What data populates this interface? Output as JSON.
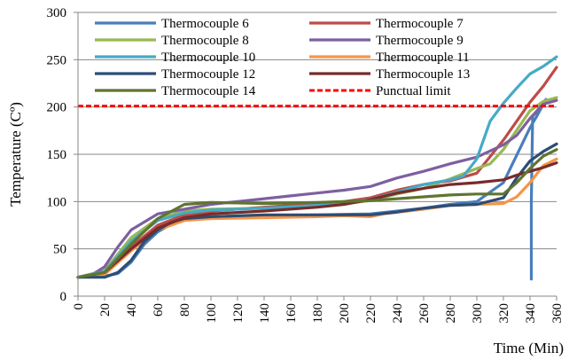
{
  "chart_data": {
    "type": "line",
    "xlabel": "Time (Min)",
    "ylabel": "Temperature (Cº)",
    "xlim": [
      0,
      360
    ],
    "ylim": [
      0,
      300
    ],
    "xticks": [
      0,
      20,
      40,
      60,
      80,
      100,
      120,
      140,
      160,
      180,
      200,
      220,
      240,
      260,
      280,
      300,
      320,
      340,
      360
    ],
    "yticks": [
      0,
      50,
      100,
      150,
      200,
      250,
      300
    ],
    "grid": "horizontal",
    "legend_placement": "top, inside plot, two columns",
    "series": [
      {
        "name": "Thermocouple 6",
        "color": "#4a7ebb",
        "points": [
          [
            0,
            20
          ],
          [
            20,
            21
          ],
          [
            30,
            24
          ],
          [
            40,
            36
          ],
          [
            50,
            55
          ],
          [
            60,
            68
          ],
          [
            70,
            76
          ],
          [
            80,
            81
          ],
          [
            100,
            83
          ],
          [
            140,
            85
          ],
          [
            180,
            86
          ],
          [
            220,
            87
          ],
          [
            260,
            93
          ],
          [
            280,
            97
          ],
          [
            300,
            100
          ],
          [
            320,
            120
          ],
          [
            340,
            178
          ],
          [
            345,
            190
          ],
          [
            352,
            208
          ],
          [
            342,
            190
          ],
          [
            341,
            100
          ],
          [
            341,
            18
          ]
        ]
      },
      {
        "name": "Thermocouple 7",
        "color": "#be4b48",
        "points": [
          [
            0,
            20
          ],
          [
            20,
            25
          ],
          [
            40,
            52
          ],
          [
            60,
            75
          ],
          [
            80,
            86
          ],
          [
            100,
            90
          ],
          [
            140,
            94
          ],
          [
            180,
            98
          ],
          [
            200,
            100
          ],
          [
            220,
            104
          ],
          [
            240,
            112
          ],
          [
            260,
            118
          ],
          [
            280,
            122
          ],
          [
            300,
            130
          ],
          [
            320,
            165
          ],
          [
            330,
            185
          ],
          [
            340,
            205
          ],
          [
            350,
            222
          ],
          [
            360,
            242
          ]
        ]
      },
      {
        "name": "Thermocouple 8",
        "color": "#98b954",
        "points": [
          [
            0,
            20
          ],
          [
            20,
            27
          ],
          [
            40,
            62
          ],
          [
            60,
            82
          ],
          [
            80,
            90
          ],
          [
            100,
            92
          ],
          [
            140,
            93
          ],
          [
            180,
            95
          ],
          [
            220,
            101
          ],
          [
            240,
            108
          ],
          [
            260,
            114
          ],
          [
            280,
            124
          ],
          [
            300,
            135
          ],
          [
            310,
            140
          ],
          [
            320,
            155
          ],
          [
            340,
            196
          ],
          [
            350,
            206
          ],
          [
            360,
            210
          ]
        ]
      },
      {
        "name": "Thermocouple 9",
        "color": "#7d60a0",
        "points": [
          [
            0,
            20
          ],
          [
            10,
            22
          ],
          [
            20,
            31
          ],
          [
            30,
            52
          ],
          [
            40,
            70
          ],
          [
            60,
            87
          ],
          [
            80,
            92
          ],
          [
            100,
            97
          ],
          [
            120,
            100
          ],
          [
            140,
            103
          ],
          [
            160,
            106
          ],
          [
            180,
            109
          ],
          [
            200,
            112
          ],
          [
            220,
            116
          ],
          [
            240,
            125
          ],
          [
            260,
            132
          ],
          [
            280,
            140
          ],
          [
            300,
            147
          ],
          [
            320,
            160
          ],
          [
            330,
            170
          ],
          [
            340,
            188
          ],
          [
            350,
            203
          ],
          [
            360,
            207
          ]
        ]
      },
      {
        "name": "Thermocouple 10",
        "color": "#46aac5",
        "points": [
          [
            0,
            20
          ],
          [
            20,
            26
          ],
          [
            40,
            58
          ],
          [
            60,
            80
          ],
          [
            80,
            88
          ],
          [
            100,
            91
          ],
          [
            140,
            93
          ],
          [
            180,
            96
          ],
          [
            220,
            102
          ],
          [
            240,
            110
          ],
          [
            260,
            118
          ],
          [
            280,
            123
          ],
          [
            290,
            127
          ],
          [
            300,
            145
          ],
          [
            310,
            185
          ],
          [
            320,
            204
          ],
          [
            330,
            220
          ],
          [
            340,
            235
          ],
          [
            350,
            243
          ],
          [
            360,
            253
          ]
        ]
      },
      {
        "name": "Thermocouple 11",
        "color": "#f69546",
        "points": [
          [
            0,
            20
          ],
          [
            20,
            23
          ],
          [
            40,
            48
          ],
          [
            60,
            70
          ],
          [
            80,
            80
          ],
          [
            100,
            82
          ],
          [
            140,
            83
          ],
          [
            180,
            84
          ],
          [
            200,
            85
          ],
          [
            220,
            84
          ],
          [
            230,
            87
          ],
          [
            260,
            92
          ],
          [
            280,
            96
          ],
          [
            300,
            97
          ],
          [
            320,
            98
          ],
          [
            330,
            105
          ],
          [
            340,
            120
          ],
          [
            350,
            138
          ],
          [
            360,
            145
          ]
        ]
      },
      {
        "name": "Thermocouple 12",
        "color": "#2c4d75",
        "points": [
          [
            0,
            20
          ],
          [
            20,
            20
          ],
          [
            30,
            25
          ],
          [
            40,
            38
          ],
          [
            50,
            58
          ],
          [
            60,
            70
          ],
          [
            70,
            78
          ],
          [
            80,
            82
          ],
          [
            100,
            84
          ],
          [
            140,
            86
          ],
          [
            180,
            86
          ],
          [
            220,
            86
          ],
          [
            240,
            89
          ],
          [
            260,
            93
          ],
          [
            280,
            96
          ],
          [
            300,
            97
          ],
          [
            320,
            104
          ],
          [
            330,
            125
          ],
          [
            340,
            143
          ],
          [
            350,
            153
          ],
          [
            360,
            161
          ]
        ]
      },
      {
        "name": "Thermocouple 13",
        "color": "#772c2a",
        "points": [
          [
            0,
            20
          ],
          [
            20,
            25
          ],
          [
            40,
            50
          ],
          [
            60,
            72
          ],
          [
            80,
            83
          ],
          [
            100,
            87
          ],
          [
            140,
            90
          ],
          [
            180,
            94
          ],
          [
            200,
            97
          ],
          [
            220,
            102
          ],
          [
            240,
            109
          ],
          [
            260,
            114
          ],
          [
            280,
            118
          ],
          [
            300,
            120
          ],
          [
            320,
            123
          ],
          [
            330,
            128
          ],
          [
            340,
            132
          ],
          [
            350,
            136
          ],
          [
            360,
            141
          ]
        ]
      },
      {
        "name": "Thermocouple 14",
        "color": "#5f7530",
        "points": [
          [
            0,
            20
          ],
          [
            20,
            25
          ],
          [
            40,
            55
          ],
          [
            60,
            82
          ],
          [
            80,
            97
          ],
          [
            100,
            99
          ],
          [
            140,
            98
          ],
          [
            180,
            99
          ],
          [
            200,
            100
          ],
          [
            220,
            101
          ],
          [
            240,
            103
          ],
          [
            260,
            105
          ],
          [
            280,
            107
          ],
          [
            300,
            108
          ],
          [
            320,
            108
          ],
          [
            330,
            120
          ],
          [
            340,
            135
          ],
          [
            350,
            148
          ],
          [
            360,
            155
          ]
        ]
      }
    ],
    "reference_lines": [
      {
        "name": "Punctual limit",
        "value": 201,
        "color": "#ff0000",
        "style": "dashed"
      }
    ]
  }
}
